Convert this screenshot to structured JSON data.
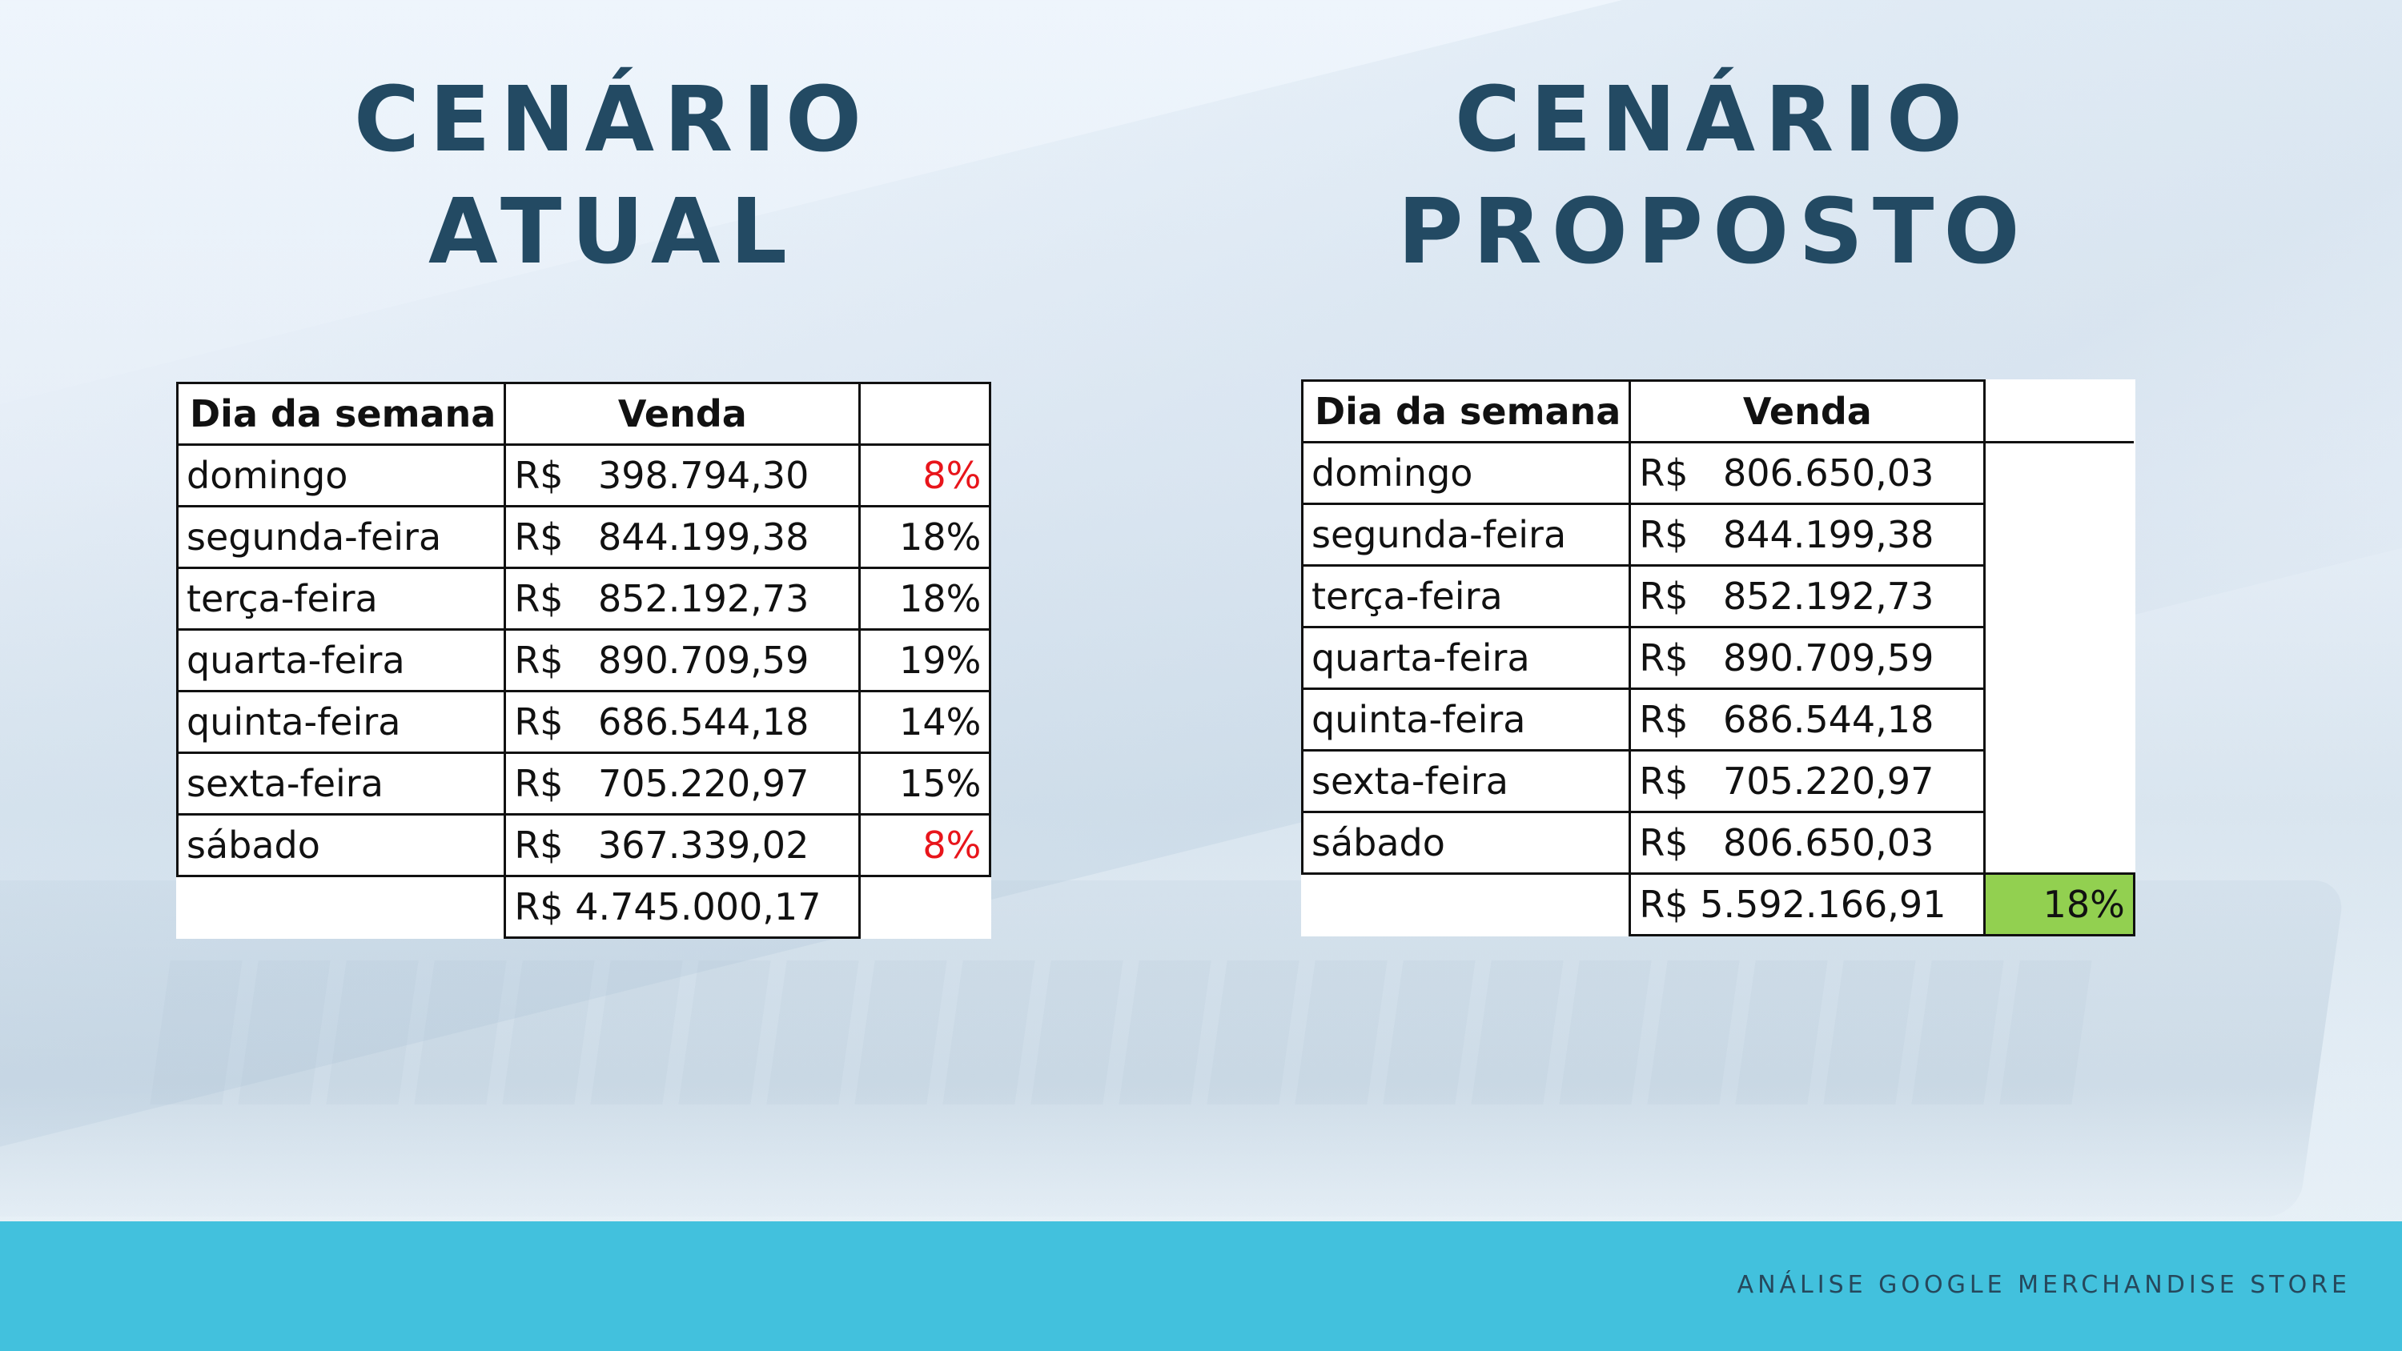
{
  "left": {
    "title_line1": "CENÁRIO",
    "title_line2": "ATUAL",
    "headers": {
      "day": "Dia da semana",
      "venda": "Venda"
    },
    "rows": [
      {
        "day": "domingo",
        "currency": "R$",
        "amount": "398.794,30",
        "pct": "8%",
        "highlight": true
      },
      {
        "day": "segunda-feira",
        "currency": "R$",
        "amount": "844.199,38",
        "pct": "18%",
        "highlight": false
      },
      {
        "day": "terça-feira",
        "currency": "R$",
        "amount": "852.192,73",
        "pct": "18%",
        "highlight": false
      },
      {
        "day": "quarta-feira",
        "currency": "R$",
        "amount": "890.709,59",
        "pct": "19%",
        "highlight": false
      },
      {
        "day": "quinta-feira",
        "currency": "R$",
        "amount": "686.544,18",
        "pct": "14%",
        "highlight": false
      },
      {
        "day": "sexta-feira",
        "currency": "R$",
        "amount": "705.220,97",
        "pct": "15%",
        "highlight": false
      },
      {
        "day": "sábado",
        "currency": "R$",
        "amount": "367.339,02",
        "pct": "8%",
        "highlight": true
      }
    ],
    "total": "R$ 4.745.000,17"
  },
  "right": {
    "title_line1": "CENÁRIO",
    "title_line2": "PROPOSTO",
    "headers": {
      "day": "Dia da semana",
      "venda": "Venda"
    },
    "rows": [
      {
        "day": "domingo",
        "currency": "R$",
        "amount": "806.650,03"
      },
      {
        "day": "segunda-feira",
        "currency": "R$",
        "amount": "844.199,38"
      },
      {
        "day": "terça-feira",
        "currency": "R$",
        "amount": "852.192,73"
      },
      {
        "day": "quarta-feira",
        "currency": "R$",
        "amount": "890.709,59"
      },
      {
        "day": "quinta-feira",
        "currency": "R$",
        "amount": "686.544,18"
      },
      {
        "day": "sexta-feira",
        "currency": "R$",
        "amount": "705.220,97"
      },
      {
        "day": "sábado",
        "currency": "R$",
        "amount": "806.650,03"
      }
    ],
    "total": "R$ 5.592.166,91",
    "total_pct": "18%"
  },
  "colors": {
    "heading": "#234a63",
    "highlight_red": "#e8151b",
    "growth_green": "#92d050",
    "footer_bar": "#42c1dd"
  },
  "footer": {
    "text": "ANÁLISE GOOGLE MERCHANDISE STORE"
  }
}
